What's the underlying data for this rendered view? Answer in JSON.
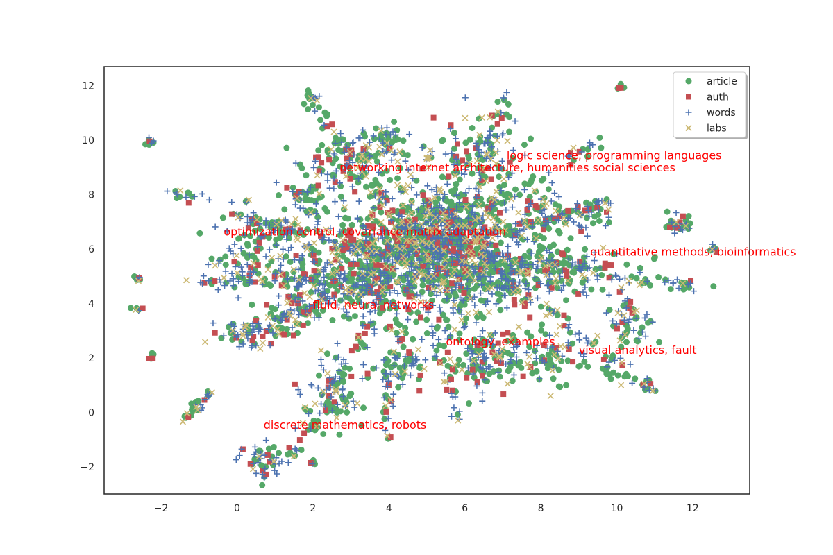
{
  "chart_data": {
    "type": "scatter",
    "title": "",
    "xlabel": "",
    "ylabel": "",
    "xlim": [
      -3.5,
      13.5
    ],
    "ylim": [
      -3,
      12.7
    ],
    "x_ticks": [
      -2,
      0,
      2,
      4,
      6,
      8,
      10,
      12
    ],
    "y_ticks": [
      -2,
      0,
      2,
      4,
      6,
      8,
      10,
      12
    ],
    "x_tick_labels": [
      "−2",
      "0",
      "2",
      "4",
      "6",
      "8",
      "10",
      "12"
    ],
    "y_tick_labels": [
      "−2",
      "0",
      "2",
      "4",
      "6",
      "8",
      "10",
      "12"
    ],
    "grid": false,
    "legend_position": "top-right",
    "series": [
      {
        "name": "article",
        "marker": "circle",
        "color": "#55a868"
      },
      {
        "name": "auth",
        "marker": "square",
        "color": "#c44e52"
      },
      {
        "name": "words",
        "marker": "plus",
        "color": "#4c72b0"
      },
      {
        "name": "labs",
        "marker": "x",
        "color": "#ccb974"
      }
    ],
    "clusters": [
      {
        "x": 4.8,
        "y": 5.8,
        "sx": 1.3,
        "sy": 1.2,
        "n": 800
      },
      {
        "x": 5.5,
        "y": 6.8,
        "sx": 0.8,
        "sy": 0.8,
        "n": 300
      },
      {
        "x": 3.5,
        "y": 5.2,
        "sx": 0.8,
        "sy": 0.8,
        "n": 200
      },
      {
        "x": 6.8,
        "y": 5.0,
        "sx": 0.8,
        "sy": 0.8,
        "n": 200
      },
      {
        "x": 6.5,
        "y": 2.0,
        "sx": 0.5,
        "sy": 0.6,
        "n": 120
      },
      {
        "x": 8.2,
        "y": 2.0,
        "sx": 0.5,
        "sy": 0.5,
        "n": 80
      },
      {
        "x": 8.5,
        "y": 5.2,
        "sx": 1.0,
        "sy": 0.5,
        "n": 150
      },
      {
        "x": 10.4,
        "y": 3.2,
        "sx": 0.3,
        "sy": 0.3,
        "n": 40
      },
      {
        "x": 11.6,
        "y": 6.9,
        "sx": 0.2,
        "sy": 0.2,
        "n": 30
      },
      {
        "x": 3.0,
        "y": 9.2,
        "sx": 0.7,
        "sy": 0.5,
        "n": 100
      },
      {
        "x": 6.3,
        "y": 9.5,
        "sx": 0.6,
        "sy": 0.8,
        "n": 120
      },
      {
        "x": 3.8,
        "y": 10.0,
        "sx": 0.3,
        "sy": 0.4,
        "n": 50
      },
      {
        "x": 2.0,
        "y": 4.5,
        "sx": 0.6,
        "sy": 0.6,
        "n": 100
      },
      {
        "x": 1.0,
        "y": 6.5,
        "sx": 0.8,
        "sy": 0.5,
        "n": 100
      },
      {
        "x": 0.2,
        "y": 5.3,
        "sx": 0.5,
        "sy": 0.4,
        "n": 60
      },
      {
        "x": 2.5,
        "y": 0.6,
        "sx": 0.4,
        "sy": 0.6,
        "n": 80
      },
      {
        "x": 0.7,
        "y": -1.8,
        "sx": 0.3,
        "sy": 0.3,
        "n": 50
      },
      {
        "x": 1.8,
        "y": 8.0,
        "sx": 0.3,
        "sy": 0.3,
        "n": 40
      },
      {
        "x": 0.5,
        "y": 2.8,
        "sx": 0.5,
        "sy": 0.3,
        "n": 50
      },
      {
        "x": 4.4,
        "y": 1.7,
        "sx": 0.4,
        "sy": 0.5,
        "n": 60
      },
      {
        "x": 7.8,
        "y": 7.2,
        "sx": 0.5,
        "sy": 0.5,
        "n": 60
      },
      {
        "x": 9.0,
        "y": 7.2,
        "sx": 0.4,
        "sy": 0.3,
        "n": 40
      },
      {
        "x": 1.5,
        "y": 3.5,
        "sx": 0.3,
        "sy": 0.3,
        "n": 40
      }
    ],
    "streaks": [
      {
        "x0": 5.0,
        "y0": 6.0,
        "x1": 10.0,
        "y1": 7.7,
        "n": 70
      },
      {
        "x0": 5.0,
        "y0": 6.0,
        "x1": 12.0,
        "y1": 4.6,
        "n": 70
      },
      {
        "x0": 6.5,
        "y0": 5.5,
        "x1": 11.0,
        "y1": 0.8,
        "n": 70
      },
      {
        "x0": 5.0,
        "y0": 6.0,
        "x1": 9.5,
        "y1": 10.0,
        "n": 60
      },
      {
        "x0": 4.5,
        "y0": 6.5,
        "x1": 1.8,
        "y1": 11.7,
        "n": 60
      },
      {
        "x0": 4.0,
        "y0": 6.0,
        "x1": -0.5,
        "y1": 7.2,
        "n": 60
      },
      {
        "x0": 4.0,
        "y0": 5.0,
        "x1": -1.2,
        "y1": 4.7,
        "n": 60
      },
      {
        "x0": 4.0,
        "y0": 5.0,
        "x1": -0.3,
        "y1": 2.8,
        "n": 60
      },
      {
        "x0": 4.0,
        "y0": 4.5,
        "x1": 1.5,
        "y1": -1.5,
        "n": 60
      },
      {
        "x0": 5.0,
        "y0": 4.0,
        "x1": 5.8,
        "y1": -0.2,
        "n": 40
      },
      {
        "x0": 4.5,
        "y0": 4.5,
        "x1": 3.8,
        "y1": -0.9,
        "n": 30
      },
      {
        "x0": 6.0,
        "y0": 6.5,
        "x1": 7.0,
        "y1": 11.5,
        "n": 50
      },
      {
        "x0": -1.5,
        "y0": -0.3,
        "x1": -0.6,
        "y1": 0.7,
        "n": 30
      },
      {
        "x0": -1.7,
        "y0": 8.1,
        "x1": -1.0,
        "y1": 7.8,
        "n": 15
      },
      {
        "x0": 11.5,
        "y0": 4.7,
        "x1": 12.2,
        "y1": 4.5,
        "n": 12
      },
      {
        "x0": 9.5,
        "y0": 1.6,
        "x1": 11.1,
        "y1": 0.8,
        "n": 20
      },
      {
        "x0": 10.0,
        "y0": 4.3,
        "x1": 10.8,
        "y1": 3.2,
        "n": 15
      }
    ],
    "islands": [
      {
        "x": -2.3,
        "y": 9.9,
        "n": 8
      },
      {
        "x": -2.6,
        "y": 4.9,
        "n": 8
      },
      {
        "x": -2.6,
        "y": 3.8,
        "n": 6
      },
      {
        "x": -2.2,
        "y": 2.1,
        "n": 6
      },
      {
        "x": 10.1,
        "y": 11.9,
        "n": 5
      },
      {
        "x": 12.5,
        "y": 6.0,
        "n": 8
      },
      {
        "x": 3.9,
        "y": -0.9,
        "n": 3
      },
      {
        "x": 2.0,
        "y": -1.9,
        "n": 4
      },
      {
        "x": 1.5,
        "y": -1.5,
        "n": 4
      },
      {
        "x": 2.0,
        "y": 11.5,
        "n": 8
      },
      {
        "x": 0.2,
        "y": 7.8,
        "n": 4
      },
      {
        "x": 5.0,
        "y": 9.4,
        "n": 6
      }
    ],
    "annotations": [
      {
        "text": "logic science, programming languages",
        "x": 7.1,
        "y": 9.3
      },
      {
        "text": "networking internet architecture, humanities social sciences",
        "x": 2.7,
        "y": 8.85
      },
      {
        "text": "optimization control, covariance matrix adaptation",
        "x": -0.35,
        "y": 6.5
      },
      {
        "text": "quantitative methods, bioinformatics",
        "x": 9.3,
        "y": 5.75
      },
      {
        "text": "fluid, neural networks",
        "x": 2.0,
        "y": 3.8
      },
      {
        "text": "ontology, examples",
        "x": 5.5,
        "y": 2.45
      },
      {
        "text": "visual analytics, fault",
        "x": 9.0,
        "y": 2.15
      },
      {
        "text": "discrete mathematics, robots",
        "x": 0.7,
        "y": -0.6
      }
    ],
    "annotation_color": "#ff0000"
  }
}
